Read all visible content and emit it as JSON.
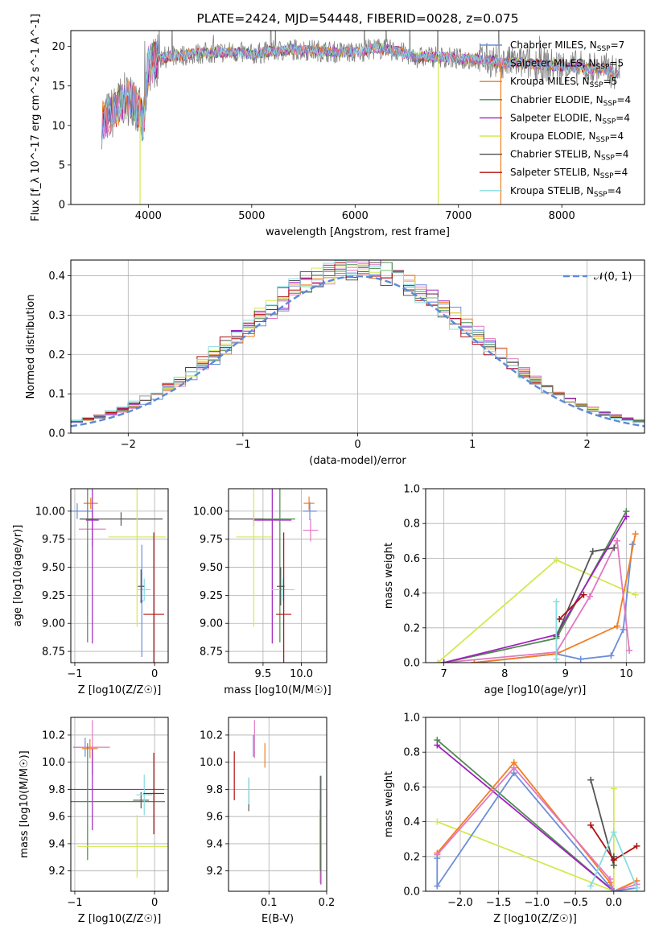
{
  "series_colors": {
    "chabrier_miles": "#6c8ed8",
    "salpeter_miles": "#e377c2",
    "kroupa_miles": "#f07f22",
    "chabrier_elodie": "#4f8a4f",
    "salpeter_elodie": "#a020c0",
    "kroupa_elodie": "#d4e84f",
    "chabrier_stelib": "#555555",
    "salpeter_stelib": "#b01010",
    "kroupa_stelib": "#88dde0"
  },
  "chart_data": [
    {
      "id": "spectrum",
      "type": "line",
      "title": "PLATE=2424, MJD=54448, FIBERID=0028, z=0.075",
      "xlabel": "wavelength [Angstrom, rest frame]",
      "ylabel": "Flux [f_λ 10^-17 erg cm^-2 s^-1 A^-1]",
      "xlim": [
        3250,
        8800
      ],
      "ylim": [
        0,
        22
      ],
      "xticks": [
        4000,
        5000,
        6000,
        7000,
        8000
      ],
      "yticks": [
        0,
        5,
        10,
        15,
        20
      ],
      "x": [
        3550,
        3650,
        3750,
        3850,
        3950,
        4000,
        4100,
        4200,
        4400,
        4600,
        4800,
        5000,
        5200,
        5400,
        5600,
        5800,
        6000,
        6200,
        6400,
        6600,
        6800,
        7000,
        7200,
        7400,
        7600,
        7800,
        8000,
        8200,
        8400,
        8600
      ],
      "y_model": [
        10.5,
        11.5,
        13.2,
        13.5,
        10.2,
        17.5,
        18.5,
        18.7,
        19.0,
        19.2,
        19.3,
        19.0,
        19.4,
        19.6,
        19.5,
        19.3,
        19.2,
        19.8,
        19.4,
        18.6,
        18.7,
        18.4,
        18.4,
        18.0,
        17.9,
        17.7,
        17.5,
        17.3,
        17.2,
        16.3
      ],
      "legend": [
        {
          "label": "Chabrier MILES, N",
          "n": "=7",
          "key": "chabrier_miles"
        },
        {
          "label": "Salpeter MILES, N",
          "n": "=5",
          "key": "salpeter_miles"
        },
        {
          "label": "Kroupa MILES, N",
          "n": "=5",
          "key": "kroupa_miles"
        },
        {
          "label": "Chabrier ELODIE, N",
          "n": "=4",
          "key": "chabrier_elodie"
        },
        {
          "label": "Salpeter ELODIE, N",
          "n": "=4",
          "key": "salpeter_elodie"
        },
        {
          "label": "Kroupa ELODIE, N",
          "n": "=4",
          "key": "kroupa_elodie"
        },
        {
          "label": "Chabrier STELIB, N",
          "n": "=4",
          "key": "chabrier_stelib"
        },
        {
          "label": "Salpeter STELIB, N",
          "n": "=4",
          "key": "salpeter_stelib"
        },
        {
          "label": "Kroupa STELIB, N",
          "n": "=4",
          "key": "kroupa_stelib"
        }
      ],
      "legend_sub": "SSP",
      "legend_position": "right"
    },
    {
      "id": "residuals",
      "type": "histogram",
      "xlabel": "(data-model)/error",
      "ylabel": "Normed distribution",
      "xlim": [
        -2.5,
        2.5
      ],
      "ylim": [
        0,
        0.44
      ],
      "xticks": [
        -2,
        -1,
        0,
        1,
        2
      ],
      "yticks": [
        0.0,
        0.1,
        0.2,
        0.3,
        0.4
      ],
      "ytick_labels": [
        "0.0",
        "0.1",
        "0.2",
        "0.3",
        "0.4"
      ],
      "reference_label": "𝒩(0, 1)",
      "legend_position": "upper right",
      "grid": true
    },
    {
      "id": "age_vs_Z",
      "type": "errorbar",
      "xlabel": "Z [log10(Z/Z☉)]",
      "ylabel": "age  [log10(age/yr)]",
      "xlim": [
        -1.05,
        0.17
      ],
      "ylim": [
        8.65,
        10.2
      ],
      "xticks": [
        -1,
        0
      ],
      "yticks": [
        8.75,
        9.0,
        9.25,
        9.5,
        9.75,
        10.0
      ],
      "ytick_labels": [
        "8.75",
        "9.00",
        "9.25",
        "9.50",
        "9.75",
        "10.00"
      ],
      "points": [
        {
          "key": "chabrier_miles",
          "x": -0.97,
          "xerr": 0.2,
          "y": 10.0,
          "yerr": 0.07
        },
        {
          "key": "kroupa_miles",
          "x": -0.8,
          "xerr": 0.09,
          "y": 10.07,
          "yerr": 0.05
        },
        {
          "key": "salpeter_miles",
          "x": -0.78,
          "xerr": 0.17,
          "y": 9.84,
          "yerr": 0.15
        },
        {
          "key": "salpeter_elodie",
          "x": -0.78,
          "xerr": 0.08,
          "y": 9.92,
          "yerr": 1.1
        },
        {
          "key": "chabrier_elodie",
          "x": -0.84,
          "xerr": 0.08,
          "y": 9.93,
          "yerr": 1.1
        },
        {
          "key": "chabrier_stelib",
          "x": -0.42,
          "xerr": 0.52,
          "y": 9.93,
          "yerr": 0.06
        },
        {
          "key": "kroupa_elodie",
          "x": -0.22,
          "xerr": 0.36,
          "y": 9.77,
          "yerr": 0.8
        },
        {
          "key": "kroupa_stelib",
          "x": -0.13,
          "xerr": 0.08,
          "y": 9.3,
          "yerr": 0.1
        },
        {
          "key": "chabrier_miles",
          "x": -0.16,
          "xerr": 0.02,
          "y": 9.2,
          "yerr": 0.5
        },
        {
          "key": "chabrier_stelib",
          "x": -0.17,
          "xerr": 0.04,
          "y": 9.33,
          "yerr": 0.15
        },
        {
          "key": "salpeter_stelib",
          "x": -0.01,
          "xerr": 0.13,
          "y": 9.08,
          "yerr": 0.73
        }
      ]
    },
    {
      "id": "age_vs_mass",
      "type": "errorbar",
      "xlabel": "mass [log10(M/M☉)]",
      "ylabel": "",
      "xlim": [
        9.05,
        10.33
      ],
      "ylim": [
        8.65,
        10.2
      ],
      "xticks": [
        9.5,
        10.0
      ],
      "xtick_labels": [
        "9.5",
        "10.0"
      ],
      "yticks": [
        8.75,
        9.0,
        9.25,
        9.5,
        9.75,
        10.0
      ],
      "ytick_labels": [
        "8.75",
        "9.00",
        "9.25",
        "9.50",
        "9.75",
        "10.00"
      ],
      "points": [
        {
          "key": "chabrier_stelib",
          "x": 9.38,
          "xerr": 0.35,
          "y": 9.93,
          "yerr": 0.06
        },
        {
          "key": "salpeter_elodie",
          "x": 9.62,
          "xerr": 0.25,
          "y": 9.92,
          "yerr": 1.1
        },
        {
          "key": "kroupa_elodie",
          "x": 9.38,
          "xerr": 0.23,
          "y": 9.77,
          "yerr": 0.8
        },
        {
          "key": "chabrier_elodie",
          "x": 9.72,
          "xerr": 0.2,
          "y": 9.93,
          "yerr": 1.1
        },
        {
          "key": "kroupa_miles",
          "x": 10.1,
          "xerr": 0.07,
          "y": 10.07,
          "yerr": 0.06
        },
        {
          "key": "chabrier_miles",
          "x": 10.11,
          "xerr": 0.09,
          "y": 10.0,
          "yerr": 0.08
        },
        {
          "key": "salpeter_miles",
          "x": 10.12,
          "xerr": 0.1,
          "y": 9.83,
          "yerr": 0.1
        },
        {
          "key": "kroupa_stelib",
          "x": 9.76,
          "xerr": 0.15,
          "y": 9.3,
          "yerr": 0.1
        },
        {
          "key": "chabrier_stelib",
          "x": 9.73,
          "xerr": 0.05,
          "y": 9.33,
          "yerr": 0.17
        },
        {
          "key": "salpeter_stelib",
          "x": 9.77,
          "xerr": 0.1,
          "y": 9.08,
          "yerr": 0.73
        }
      ]
    },
    {
      "id": "weight_vs_age",
      "type": "line",
      "xlabel": "age  [log10(age/yr)]",
      "ylabel": "mass weight",
      "xlim": [
        6.7,
        10.3
      ],
      "ylim": [
        0,
        1
      ],
      "xticks": [
        7,
        8,
        9,
        10
      ],
      "yticks": [
        0,
        0.2,
        0.4,
        0.6,
        0.8,
        1.0
      ],
      "ytick_labels": [
        "0.0",
        "0.2",
        "0.4",
        "0.6",
        "0.8",
        "1.0"
      ],
      "series": [
        {
          "key": "kroupa_elodie",
          "x": [
            6.9,
            8.85,
            10.15
          ],
          "y": [
            0.0,
            0.59,
            0.39
          ]
        },
        {
          "key": "chabrier_miles",
          "x": [
            7.5,
            8.85,
            9.25,
            9.75,
            9.95,
            10.1
          ],
          "y": [
            0.0,
            0.05,
            0.02,
            0.04,
            0.19,
            0.68
          ]
        },
        {
          "key": "kroupa_miles",
          "x": [
            7.5,
            8.85,
            9.85,
            10.15
          ],
          "y": [
            0.0,
            0.05,
            0.21,
            0.74
          ]
        },
        {
          "key": "salpeter_miles",
          "x": [
            7.0,
            8.85,
            9.4,
            9.85,
            10.05
          ],
          "y": [
            0.0,
            0.06,
            0.38,
            0.7,
            0.07
          ]
        },
        {
          "key": "chabrier_elodie",
          "x": [
            7.0,
            8.85,
            10.0
          ],
          "y": [
            0.0,
            0.14,
            0.87
          ]
        },
        {
          "key": "salpeter_elodie",
          "x": [
            7.0,
            8.85,
            10.0
          ],
          "y": [
            0.0,
            0.16,
            0.84
          ]
        },
        {
          "key": "chabrier_stelib",
          "x": [
            8.85,
            9.45,
            9.8
          ],
          "y": [
            0.15,
            0.64,
            0.66
          ]
        },
        {
          "key": "salpeter_stelib",
          "x": [
            8.9,
            9.3
          ],
          "y": [
            0.25,
            0.39
          ]
        },
        {
          "key": "kroupa_stelib",
          "x": [
            8.85,
            8.85
          ],
          "y": [
            0.02,
            0.35
          ]
        }
      ]
    },
    {
      "id": "mass_vs_Z",
      "type": "errorbar",
      "xlabel": "Z [log10(Z/Z☉)]",
      "ylabel": "mass [log10(M/M☉)]",
      "xlim": [
        -1.05,
        0.17
      ],
      "ylim": [
        9.05,
        10.33
      ],
      "xticks": [
        -1,
        0
      ],
      "yticks": [
        9.2,
        9.4,
        9.6,
        9.8,
        10.0,
        10.2
      ],
      "ytick_labels": [
        "9.2",
        "9.4",
        "9.6",
        "9.8",
        "10.0",
        "10.2"
      ],
      "points": [
        {
          "key": "chabrier_miles",
          "x": -0.87,
          "xerr": 0.15,
          "y": 10.11,
          "yerr": 0.07
        },
        {
          "key": "salpeter_miles",
          "x": -0.78,
          "xerr": 0.22,
          "y": 10.11,
          "yerr": 0.2
        },
        {
          "key": "kroupa_miles",
          "x": -0.81,
          "xerr": 0.1,
          "y": 10.1,
          "yerr": 0.07
        },
        {
          "key": "salpeter_elodie",
          "x": -0.78,
          "xerr": 0.9,
          "y": 9.8,
          "yerr": 0.3
        },
        {
          "key": "chabrier_elodie",
          "x": -0.84,
          "xerr": 0.97,
          "y": 9.71,
          "yerr": 0.43
        },
        {
          "key": "kroupa_elodie",
          "x": -0.22,
          "xerr": 0.75,
          "y": 9.38,
          "yerr": 0.23
        },
        {
          "key": "chabrier_stelib",
          "x": -0.17,
          "xerr": 0.1,
          "y": 9.72,
          "yerr": 0.06
        },
        {
          "key": "kroupa_stelib",
          "x": -0.13,
          "xerr": 0.1,
          "y": 9.76,
          "yerr": 0.15
        },
        {
          "key": "salpeter_stelib",
          "x": -0.01,
          "xerr": 0.13,
          "y": 9.77,
          "yerr": 0.3
        }
      ]
    },
    {
      "id": "mass_vs_ebv",
      "type": "errorbar",
      "xlabel": "E(B-V)",
      "ylabel": "",
      "xlim": [
        0.03,
        0.2
      ],
      "ylim": [
        9.05,
        10.33
      ],
      "xticks": [
        0.1,
        0.2
      ],
      "xtick_labels": [
        "0.1",
        "0.2"
      ],
      "yticks": [
        9.2,
        9.4,
        9.6,
        9.8,
        10.0,
        10.2
      ],
      "ytick_labels": [
        "9.2",
        "9.4",
        "9.6",
        "9.8",
        "10.0",
        "10.2"
      ],
      "points": [
        {
          "key": "salpeter_stelib",
          "x": 0.04,
          "xerr": 0.0,
          "y": 9.9,
          "yerr": 0.18
        },
        {
          "key": "chabrier_stelib",
          "x": 0.065,
          "xerr": 0.0,
          "y": 9.76,
          "yerr": 0.12
        },
        {
          "key": "kroupa_stelib",
          "x": 0.065,
          "xerr": 0.0,
          "y": 9.79,
          "yerr": 0.1
        },
        {
          "key": "chabrier_miles",
          "x": 0.073,
          "xerr": 0.0,
          "y": 10.12,
          "yerr": 0.08
        },
        {
          "key": "salpeter_miles",
          "x": 0.075,
          "xerr": 0.0,
          "y": 10.17,
          "yerr": 0.14
        },
        {
          "key": "kroupa_miles",
          "x": 0.093,
          "xerr": 0.0,
          "y": 10.05,
          "yerr": 0.09
        },
        {
          "key": "salpeter_elodie",
          "x": 0.19,
          "xerr": 0.0,
          "y": 9.5,
          "yerr": 0.4
        },
        {
          "key": "kroupa_elodie",
          "x": 0.188,
          "xerr": 0.0,
          "y": 9.38,
          "yerr": 0.27
        },
        {
          "key": "chabrier_elodie",
          "x": 0.189,
          "xerr": 0.0,
          "y": 9.55,
          "yerr": 0.35
        }
      ]
    },
    {
      "id": "weight_vs_Z",
      "type": "line",
      "xlabel": "Z [log10(Z/Z☉)]",
      "ylabel": "mass weight",
      "xlim": [
        -2.45,
        0.4
      ],
      "ylim": [
        0,
        1
      ],
      "xticks": [
        -2.0,
        -1.5,
        -1.0,
        -0.5,
        0.0
      ],
      "xtick_labels": [
        "−2.0",
        "−1.5",
        "−1.0",
        "−0.5",
        "0.0"
      ],
      "yticks": [
        0,
        0.2,
        0.4,
        0.6,
        0.8,
        1.0
      ],
      "ytick_labels": [
        "0.0",
        "0.2",
        "0.4",
        "0.6",
        "0.8",
        "1.0"
      ],
      "series": [
        {
          "key": "chabrier_elodie",
          "x": [
            -2.3,
            0.0
          ],
          "y": [
            0.87,
            0.0
          ]
        },
        {
          "key": "salpeter_elodie",
          "x": [
            -2.3,
            0.0
          ],
          "y": [
            0.84,
            0.0
          ]
        },
        {
          "key": "kroupa_elodie",
          "x": [
            -2.3,
            0.0,
            0.0
          ],
          "y": [
            0.4,
            0.0,
            0.59
          ]
        },
        {
          "key": "kroupa_miles",
          "x": [
            -2.3,
            -1.3,
            -0.05,
            0.0,
            0.3
          ],
          "y": [
            0.22,
            0.74,
            0.05,
            0.0,
            0.06
          ]
        },
        {
          "key": "salpeter_miles",
          "x": [
            -2.3,
            -1.3,
            -0.05,
            0.0,
            0.3
          ],
          "y": [
            0.21,
            0.71,
            0.07,
            0.0,
            0.04
          ]
        },
        {
          "key": "chabrier_miles",
          "x": [
            -2.3,
            -2.3,
            -1.3,
            0.0,
            0.3
          ],
          "y": [
            0.19,
            0.03,
            0.68,
            0.0,
            0.02
          ]
        },
        {
          "key": "chabrier_stelib",
          "x": [
            -0.3,
            0.0,
            0.0
          ],
          "y": [
            0.64,
            0.15,
            0.2
          ]
        },
        {
          "key": "salpeter_stelib",
          "x": [
            -0.3,
            0.0,
            0.3
          ],
          "y": [
            0.38,
            0.18,
            0.26
          ]
        },
        {
          "key": "kroupa_stelib",
          "x": [
            -0.3,
            0.0,
            0.3
          ],
          "y": [
            0.03,
            0.34,
            0.02
          ]
        }
      ]
    }
  ]
}
